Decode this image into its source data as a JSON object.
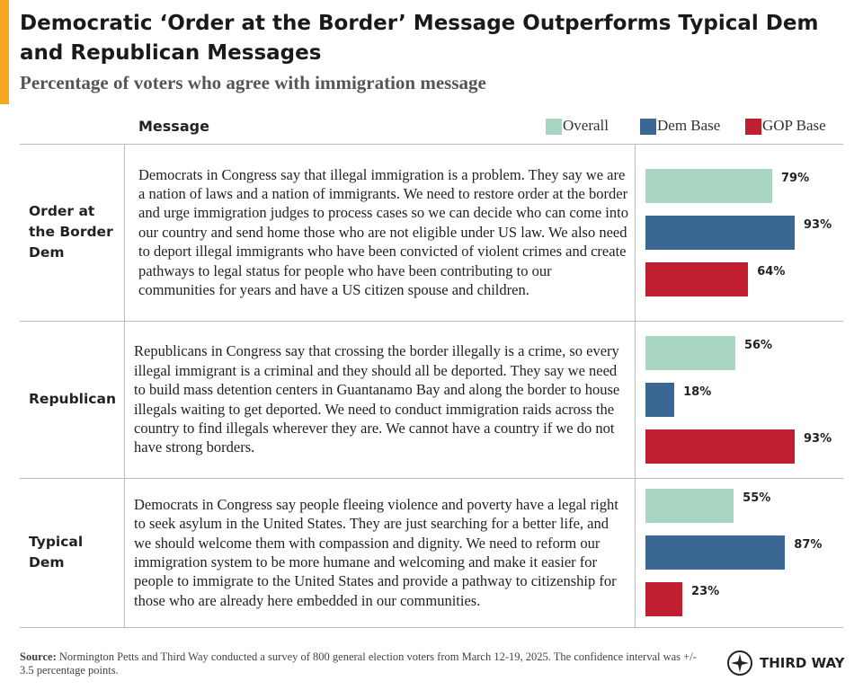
{
  "chart_data": {
    "type": "bar",
    "title": "Democratic ‘Order at the Border’ Message Outperforms Typical Dem and Republican Messages",
    "subtitle": "Percentage of voters who agree with immigration message",
    "column_header": "Message",
    "categories": [
      "Order at the Border Dem",
      "Republican",
      "Typical Dem"
    ],
    "messages": [
      "Democrats in Congress say that illegal immigration is a problem. They say we are a nation of laws and a nation of immigrants. We need to restore order at the border and urge immigration judges to process cases so we can decide who can come into our country and send home those who are not eligible under US law. We also need to deport illegal immigrants who have been convicted of violent crimes and create pathways to legal status for people who have been contributing to our communities for years and have a US citizen spouse and children.",
      "Republicans in Congress say that crossing the border illegally is a crime, so every illegal immigrant is a criminal and they should all be deported. They say we need to build mass detention centers in Guantanamo Bay and along the border to house illegals waiting to get deported. We need to conduct immigration raids across the country to find illegals wherever they are. We cannot have a country if we do not have strong borders.",
      "Democrats in Congress say people fleeing violence and poverty have a legal right to seek asylum in the United States. They are just searching for a better life, and we should welcome them with compassion and dignity. We need to reform our immigration system to be more humane and welcoming and make it easier for people to immigrate to the United States and provide a pathway to citizenship for those who are already here embedded in our communities."
    ],
    "series": [
      {
        "name": "Overall",
        "color": "#a9d5c3",
        "values": [
          79,
          56,
          55
        ],
        "value_labels": [
          "79%",
          "56%",
          "55%"
        ]
      },
      {
        "name": "Dem Base",
        "color": "#3b6794",
        "values": [
          93,
          18,
          87
        ],
        "value_labels": [
          "93%",
          "18%",
          "87%"
        ]
      },
      {
        "name": "GOP Base",
        "color": "#c01f30",
        "values": [
          64,
          93,
          23
        ],
        "value_labels": [
          "64%",
          "93%",
          "23%"
        ]
      }
    ],
    "source_label": "Source:",
    "source": "Normington Petts and Third Way conducted a survey of 800 general election voters from March 12-19, 2025. The confidence interval was +/- 3.5 percentage points.",
    "logo": "THIRD WAY"
  }
}
